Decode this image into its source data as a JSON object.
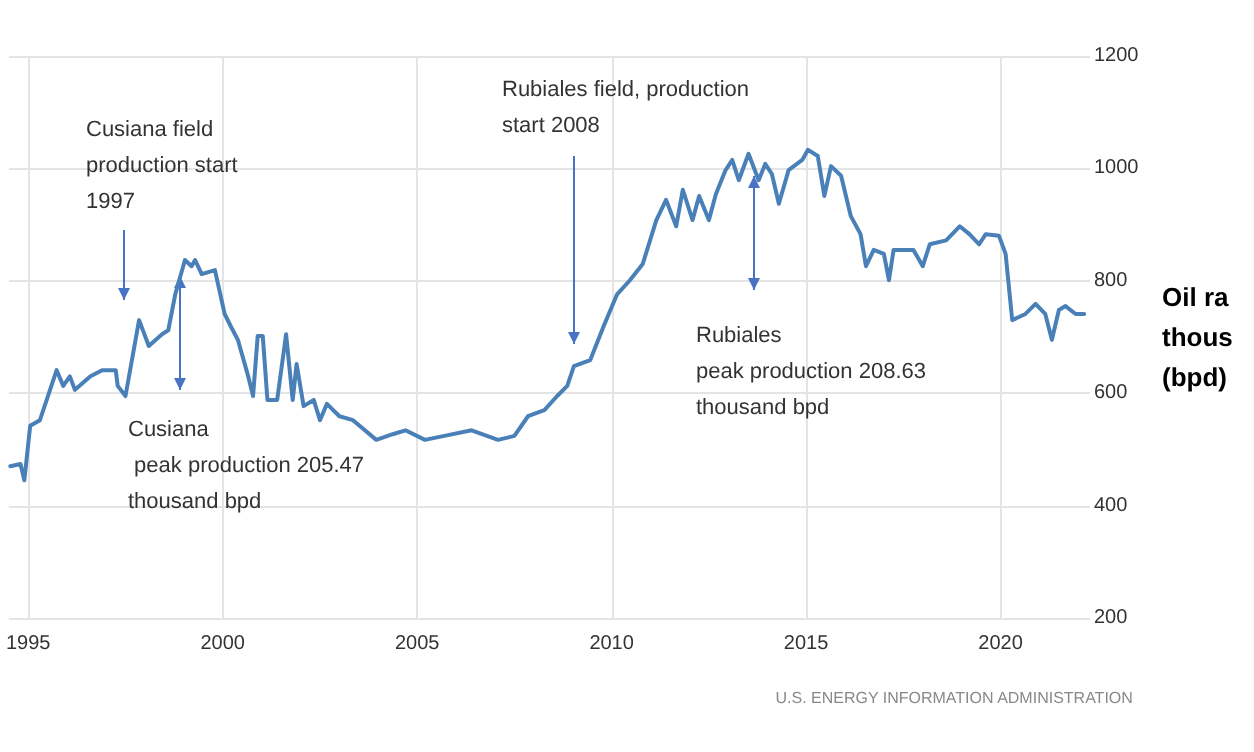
{
  "chart_data": {
    "type": "line",
    "ylabel": "Oil ra\nthous\n(bpd)",
    "color": "#4a80b8",
    "grid": true,
    "marker": "none",
    "line_style": "solid",
    "xlim": [
      1994.5,
      2022.3
    ],
    "xticks": [
      1995,
      2000,
      2005,
      2010,
      2015,
      2020
    ],
    "ylim": [
      200,
      1200
    ],
    "yticks": [
      200,
      400,
      600,
      800,
      1000,
      1200
    ],
    "x": [
      1994.54,
      1994.8,
      1994.9,
      1995.05,
      1995.3,
      1995.56,
      1995.73,
      1995.9,
      1996.07,
      1996.2,
      1996.6,
      1996.9,
      1997.25,
      1997.3,
      1997.5,
      1997.85,
      1998.1,
      1998.44,
      1998.6,
      1998.78,
      1999.03,
      1999.2,
      1999.29,
      1999.46,
      1999.8,
      2000.05,
      2000.2,
      2000.39,
      2000.64,
      2000.78,
      2000.9,
      2001.03,
      2001.15,
      2001.4,
      2001.63,
      2001.8,
      2001.9,
      2002.08,
      2002.34,
      2002.5,
      2002.68,
      2003.0,
      2003.35,
      2003.95,
      2004.37,
      2004.7,
      2005.2,
      2005.7,
      2006.4,
      2007.08,
      2007.5,
      2007.85,
      2008.27,
      2008.6,
      2008.86,
      2009.03,
      2009.45,
      2009.8,
      2010.14,
      2010.47,
      2010.8,
      2011.15,
      2011.4,
      2011.66,
      2011.83,
      2012.08,
      2012.25,
      2012.5,
      2012.68,
      2012.93,
      2013.1,
      2013.27,
      2013.52,
      2013.78,
      2013.95,
      2014.12,
      2014.3,
      2014.55,
      2014.9,
      2015.05,
      2015.3,
      2015.47,
      2015.64,
      2015.9,
      2016.15,
      2016.4,
      2016.54,
      2016.74,
      2017.0,
      2017.13,
      2017.25,
      2017.76,
      2018.0,
      2018.18,
      2018.6,
      2018.95,
      2019.2,
      2019.45,
      2019.62,
      2019.96,
      2020.13,
      2020.3,
      2020.64,
      2020.9,
      2021.15,
      2021.32,
      2021.5,
      2021.67,
      2021.93,
      2022.15
    ],
    "values": [
      470,
      474,
      445,
      542,
      552,
      606,
      641,
      613,
      630,
      606,
      630,
      641,
      641,
      613,
      595,
      730,
      684,
      705,
      712,
      776,
      837,
      826,
      837,
      812,
      819,
      741,
      720,
      695,
      634,
      595,
      702,
      702,
      588,
      588,
      705,
      588,
      652,
      577,
      588,
      552,
      581,
      559,
      552,
      517,
      527,
      534,
      517,
      524,
      534,
      517,
      524,
      559,
      570,
      595,
      613,
      648,
      659,
      720,
      776,
      801,
      830,
      908,
      944,
      897,
      962,
      908,
      951,
      908,
      954,
      997,
      1015,
      979,
      1026,
      979,
      1008,
      990,
      937,
      997,
      1015,
      1033,
      1022,
      951,
      1004,
      987,
      915,
      883,
      826,
      855,
      848,
      801,
      855,
      855,
      826,
      865,
      872,
      897,
      883,
      865,
      883,
      880,
      848,
      730,
      741,
      759,
      741,
      695,
      748,
      755,
      741,
      741
    ],
    "annotations": [
      "Cusiana field\nproduction start\n1997",
      "Cusiana\n peak production 205.47\nthousand bpd",
      "Rubiales field, production\nstart 2008",
      "Rubiales\npeak production 208.63\nthousand bpd",
      "U.S. ENERGY INFORMATION ADMINISTRATION"
    ]
  }
}
